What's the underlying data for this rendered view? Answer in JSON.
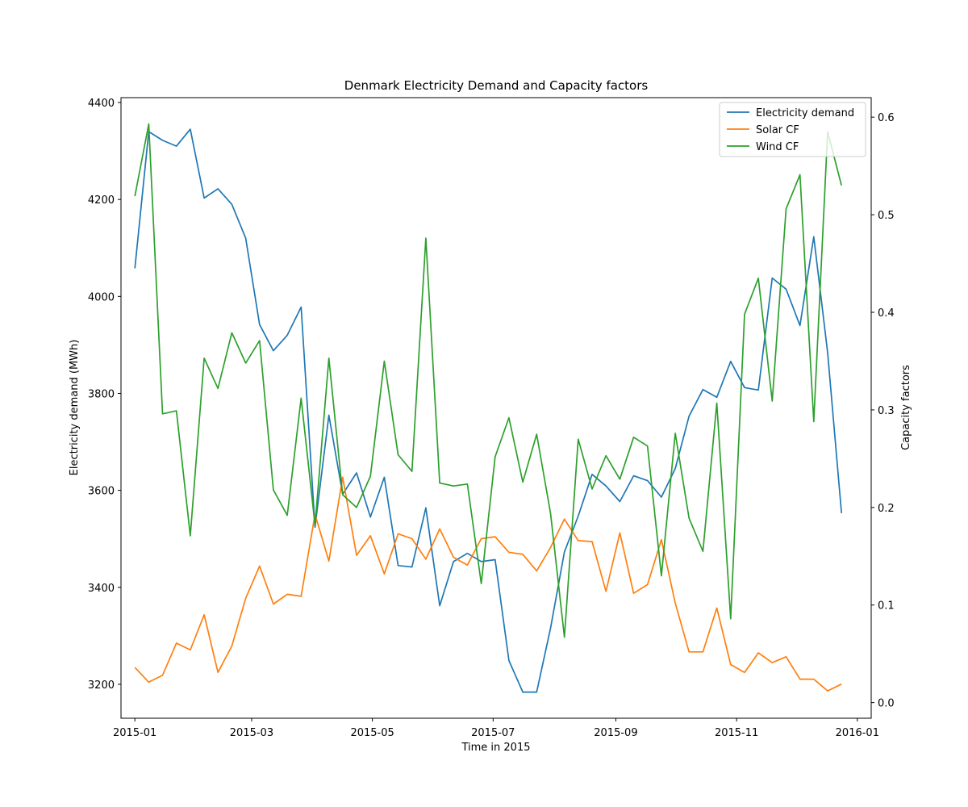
{
  "chart_data": {
    "type": "line",
    "title": "Denmark Electricity Demand and Capacity factors",
    "xlabel": "Time in 2015",
    "ylabel_left": "Electricity demand (MWh)",
    "ylabel_right": "Capacity factors",
    "x_ticks": [
      "2015-01",
      "2015-03",
      "2015-05",
      "2015-07",
      "2015-09",
      "2015-11",
      "2016-01"
    ],
    "x_tick_dates": [
      "2015-01-01",
      "2015-03-01",
      "2015-05-01",
      "2015-07-01",
      "2015-09-01",
      "2015-11-01",
      "2016-01-01"
    ],
    "xlim": [
      "2014-12-25",
      "2016-01-08"
    ],
    "y_left_ticks": [
      3200,
      3400,
      3600,
      3800,
      4000,
      4200,
      4400
    ],
    "y_left_lim": [
      3130,
      4410
    ],
    "y_right_ticks": [
      0.0,
      0.1,
      0.2,
      0.3,
      0.4,
      0.5,
      0.6
    ],
    "y_right_lim": [
      -0.016,
      0.62
    ],
    "legend_position": "top-right",
    "x": [
      "2015-01-01",
      "2015-01-08",
      "2015-01-15",
      "2015-01-22",
      "2015-01-29",
      "2015-02-05",
      "2015-02-12",
      "2015-02-19",
      "2015-02-26",
      "2015-03-05",
      "2015-03-12",
      "2015-03-19",
      "2015-03-26",
      "2015-04-02",
      "2015-04-09",
      "2015-04-16",
      "2015-04-23",
      "2015-04-30",
      "2015-05-07",
      "2015-05-14",
      "2015-05-21",
      "2015-05-28",
      "2015-06-04",
      "2015-06-11",
      "2015-06-18",
      "2015-06-25",
      "2015-07-02",
      "2015-07-09",
      "2015-07-16",
      "2015-07-23",
      "2015-07-30",
      "2015-08-06",
      "2015-08-13",
      "2015-08-20",
      "2015-08-27",
      "2015-09-03",
      "2015-09-10",
      "2015-09-17",
      "2015-09-24",
      "2015-10-01",
      "2015-10-08",
      "2015-10-15",
      "2015-10-22",
      "2015-10-29",
      "2015-11-05",
      "2015-11-12",
      "2015-11-19",
      "2015-11-26",
      "2015-12-03",
      "2015-12-10",
      "2015-12-17",
      "2015-12-24"
    ],
    "series": [
      {
        "name": "Electricity demand",
        "axis": "left",
        "color": "#1f77b4",
        "values": [
          4058,
          4340,
          4322,
          4310,
          4345,
          4203,
          4222,
          4190,
          4120,
          3942,
          3888,
          3920,
          3978,
          3524,
          3755,
          3592,
          3636,
          3545,
          3627,
          3445,
          3442,
          3564,
          3362,
          3453,
          3470,
          3453,
          3457,
          3249,
          3184,
          3184,
          3316,
          3473,
          3547,
          3633,
          3609,
          3577,
          3630,
          3620,
          3586,
          3645,
          3753,
          3808,
          3792,
          3866,
          3812,
          3807,
          4038,
          4015,
          3940,
          4123,
          3884,
          3553
        ]
      },
      {
        "name": "Solar CF",
        "axis": "right",
        "color": "#ff7f0e",
        "values": [
          0.036,
          0.021,
          0.028,
          0.061,
          0.054,
          0.09,
          0.031,
          0.058,
          0.107,
          0.14,
          0.101,
          0.111,
          0.109,
          0.193,
          0.145,
          0.231,
          0.151,
          0.171,
          0.132,
          0.173,
          0.168,
          0.147,
          0.178,
          0.149,
          0.141,
          0.168,
          0.17,
          0.154,
          0.152,
          0.135,
          0.159,
          0.188,
          0.166,
          0.165,
          0.114,
          0.174,
          0.112,
          0.121,
          0.167,
          0.102,
          0.052,
          0.052,
          0.097,
          0.039,
          0.031,
          0.051,
          0.041,
          0.047,
          0.024,
          0.024,
          0.012,
          0.019
        ]
      },
      {
        "name": "Wind CF",
        "axis": "right",
        "color": "#2ca02c",
        "values": [
          0.519,
          0.593,
          0.296,
          0.299,
          0.171,
          0.353,
          0.322,
          0.379,
          0.348,
          0.371,
          0.218,
          0.192,
          0.312,
          0.182,
          0.353,
          0.213,
          0.2,
          0.232,
          0.35,
          0.254,
          0.237,
          0.476,
          0.225,
          0.222,
          0.224,
          0.122,
          0.252,
          0.292,
          0.226,
          0.275,
          0.194,
          0.067,
          0.27,
          0.219,
          0.253,
          0.229,
          0.272,
          0.263,
          0.13,
          0.276,
          0.189,
          0.155,
          0.307,
          0.086,
          0.398,
          0.435,
          0.309,
          0.506,
          0.541,
          0.288,
          0.585,
          0.53
        ]
      }
    ]
  }
}
